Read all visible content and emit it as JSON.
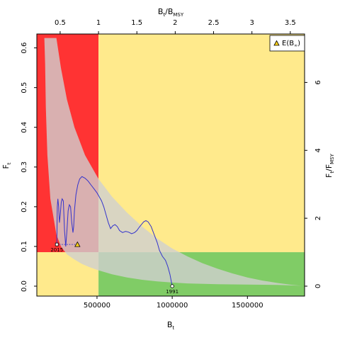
{
  "chart_data": {
    "type": "line",
    "title": "",
    "xlabel": "B",
    "xlabel_sub": "t",
    "ylabel": "F",
    "ylabel_sub": "t",
    "top_axis_label": "B",
    "top_axis_label_sub": "t",
    "top_axis_label_post": "/B",
    "top_axis_label_post_sub": "MSY",
    "right_axis_label": "F",
    "right_axis_label_sub": "t",
    "right_axis_label_post": "/F",
    "right_axis_label_post_sub": "MSY",
    "xlim": [
      100000,
      1880000
    ],
    "ylim": [
      -0.025,
      0.635
    ],
    "bmsy": 510000,
    "fmsy": 0.0855,
    "x_ticks": [
      500000,
      1000000,
      1500000
    ],
    "x_tick_labels": [
      "500000",
      "1000000",
      "1500000"
    ],
    "y_ticks": [
      0.0,
      0.1,
      0.2,
      0.3,
      0.4,
      0.5,
      0.6
    ],
    "y_tick_labels": [
      "0.0",
      "0.1",
      "0.2",
      "0.3",
      "0.4",
      "0.5",
      "0.6"
    ],
    "top_ticks": [
      0.5,
      1,
      1.5,
      2,
      2.5,
      3,
      3.5
    ],
    "top_tick_labels": [
      "0.5",
      "1",
      "1.5",
      "2",
      "2.5",
      "3",
      "3.5"
    ],
    "right_ticks": [
      0,
      2,
      4,
      6
    ],
    "right_tick_labels": [
      "0",
      "2",
      "4",
      "6"
    ],
    "quadrant_colors": {
      "overfished_overfishing": "#ff3333",
      "overfishing_only": "#ffea8c",
      "overfished_only": "#ffea8c",
      "healthy": "#80cc66"
    },
    "uncertainty_region": {
      "color": "#d0d0d0",
      "upper": [
        [
          230000,
          0.625
        ],
        [
          260000,
          0.55
        ],
        [
          300000,
          0.47
        ],
        [
          350000,
          0.4
        ],
        [
          420000,
          0.33
        ],
        [
          510000,
          0.27
        ],
        [
          600000,
          0.225
        ],
        [
          700000,
          0.185
        ],
        [
          800000,
          0.15
        ],
        [
          900000,
          0.12
        ],
        [
          1000000,
          0.095
        ],
        [
          1100000,
          0.075
        ],
        [
          1200000,
          0.058
        ],
        [
          1300000,
          0.044
        ],
        [
          1400000,
          0.032
        ],
        [
          1500000,
          0.022
        ],
        [
          1600000,
          0.014
        ],
        [
          1700000,
          0.008
        ],
        [
          1800000,
          0.003
        ],
        [
          1860000,
          0.001
        ]
      ],
      "lower": [
        [
          1860000,
          0.001
        ],
        [
          1700000,
          0.003
        ],
        [
          1500000,
          0.004
        ],
        [
          1300000,
          0.005
        ],
        [
          1100000,
          0.007
        ],
        [
          1000000,
          0.009
        ],
        [
          900000,
          0.012
        ],
        [
          800000,
          0.016
        ],
        [
          700000,
          0.022
        ],
        [
          600000,
          0.03
        ],
        [
          510000,
          0.04
        ],
        [
          450000,
          0.048
        ],
        [
          400000,
          0.056
        ],
        [
          350000,
          0.067
        ],
        [
          300000,
          0.08
        ],
        [
          260000,
          0.1
        ],
        [
          230000,
          0.13
        ],
        [
          190000,
          0.22
        ],
        [
          170000,
          0.33
        ],
        [
          160000,
          0.45
        ],
        [
          155000,
          0.56
        ],
        [
          150000,
          0.625
        ]
      ]
    },
    "series": [
      {
        "color": "#3333cc",
        "x": [
          1000000,
          985000,
          970000,
          955000,
          935000,
          915000,
          900000,
          880000,
          860000,
          840000,
          825000,
          810000,
          795000,
          780000,
          765000,
          750000,
          730000,
          710000,
          690000,
          670000,
          650000,
          635000,
          620000,
          605000,
          590000,
          575000,
          560000,
          545000,
          530000,
          515000,
          500000,
          480000,
          460000,
          440000,
          420000,
          400000,
          385000,
          372000,
          360000,
          350000,
          345000,
          340000,
          332000,
          324000,
          316000,
          308000,
          300000,
          292000,
          284000,
          276000,
          268000,
          262000,
          256000,
          250000,
          245000,
          240000,
          236000,
          233000
        ],
        "y": [
          0.0,
          0.03,
          0.05,
          0.065,
          0.075,
          0.09,
          0.11,
          0.13,
          0.15,
          0.162,
          0.165,
          0.162,
          0.155,
          0.148,
          0.14,
          0.135,
          0.132,
          0.136,
          0.138,
          0.135,
          0.14,
          0.15,
          0.155,
          0.152,
          0.145,
          0.16,
          0.18,
          0.2,
          0.215,
          0.225,
          0.235,
          0.245,
          0.255,
          0.265,
          0.272,
          0.276,
          0.27,
          0.255,
          0.23,
          0.19,
          0.15,
          0.135,
          0.16,
          0.2,
          0.205,
          0.19,
          0.14,
          0.1,
          0.14,
          0.215,
          0.22,
          0.21,
          0.18,
          0.16,
          0.2,
          0.22,
          0.2,
          0.105
        ]
      }
    ],
    "projection": {
      "x": [
        233000,
        255000,
        310000,
        370000
      ],
      "y": [
        0.105,
        0.105,
        0.105,
        0.105
      ],
      "style": "dotted"
    },
    "points": [
      {
        "name": "1991",
        "label": "1991",
        "x": 1000000,
        "y": 0.0
      },
      {
        "name": "2015",
        "label": "2015",
        "x": 233000,
        "y": 0.105
      },
      {
        "name": "E(B_inf)",
        "x": 370000,
        "y": 0.105
      }
    ],
    "legend": {
      "position": "top-right",
      "entries": [
        {
          "label": "E(B",
          "sub": "∞",
          "post": ")"
        }
      ]
    },
    "grid": false
  }
}
